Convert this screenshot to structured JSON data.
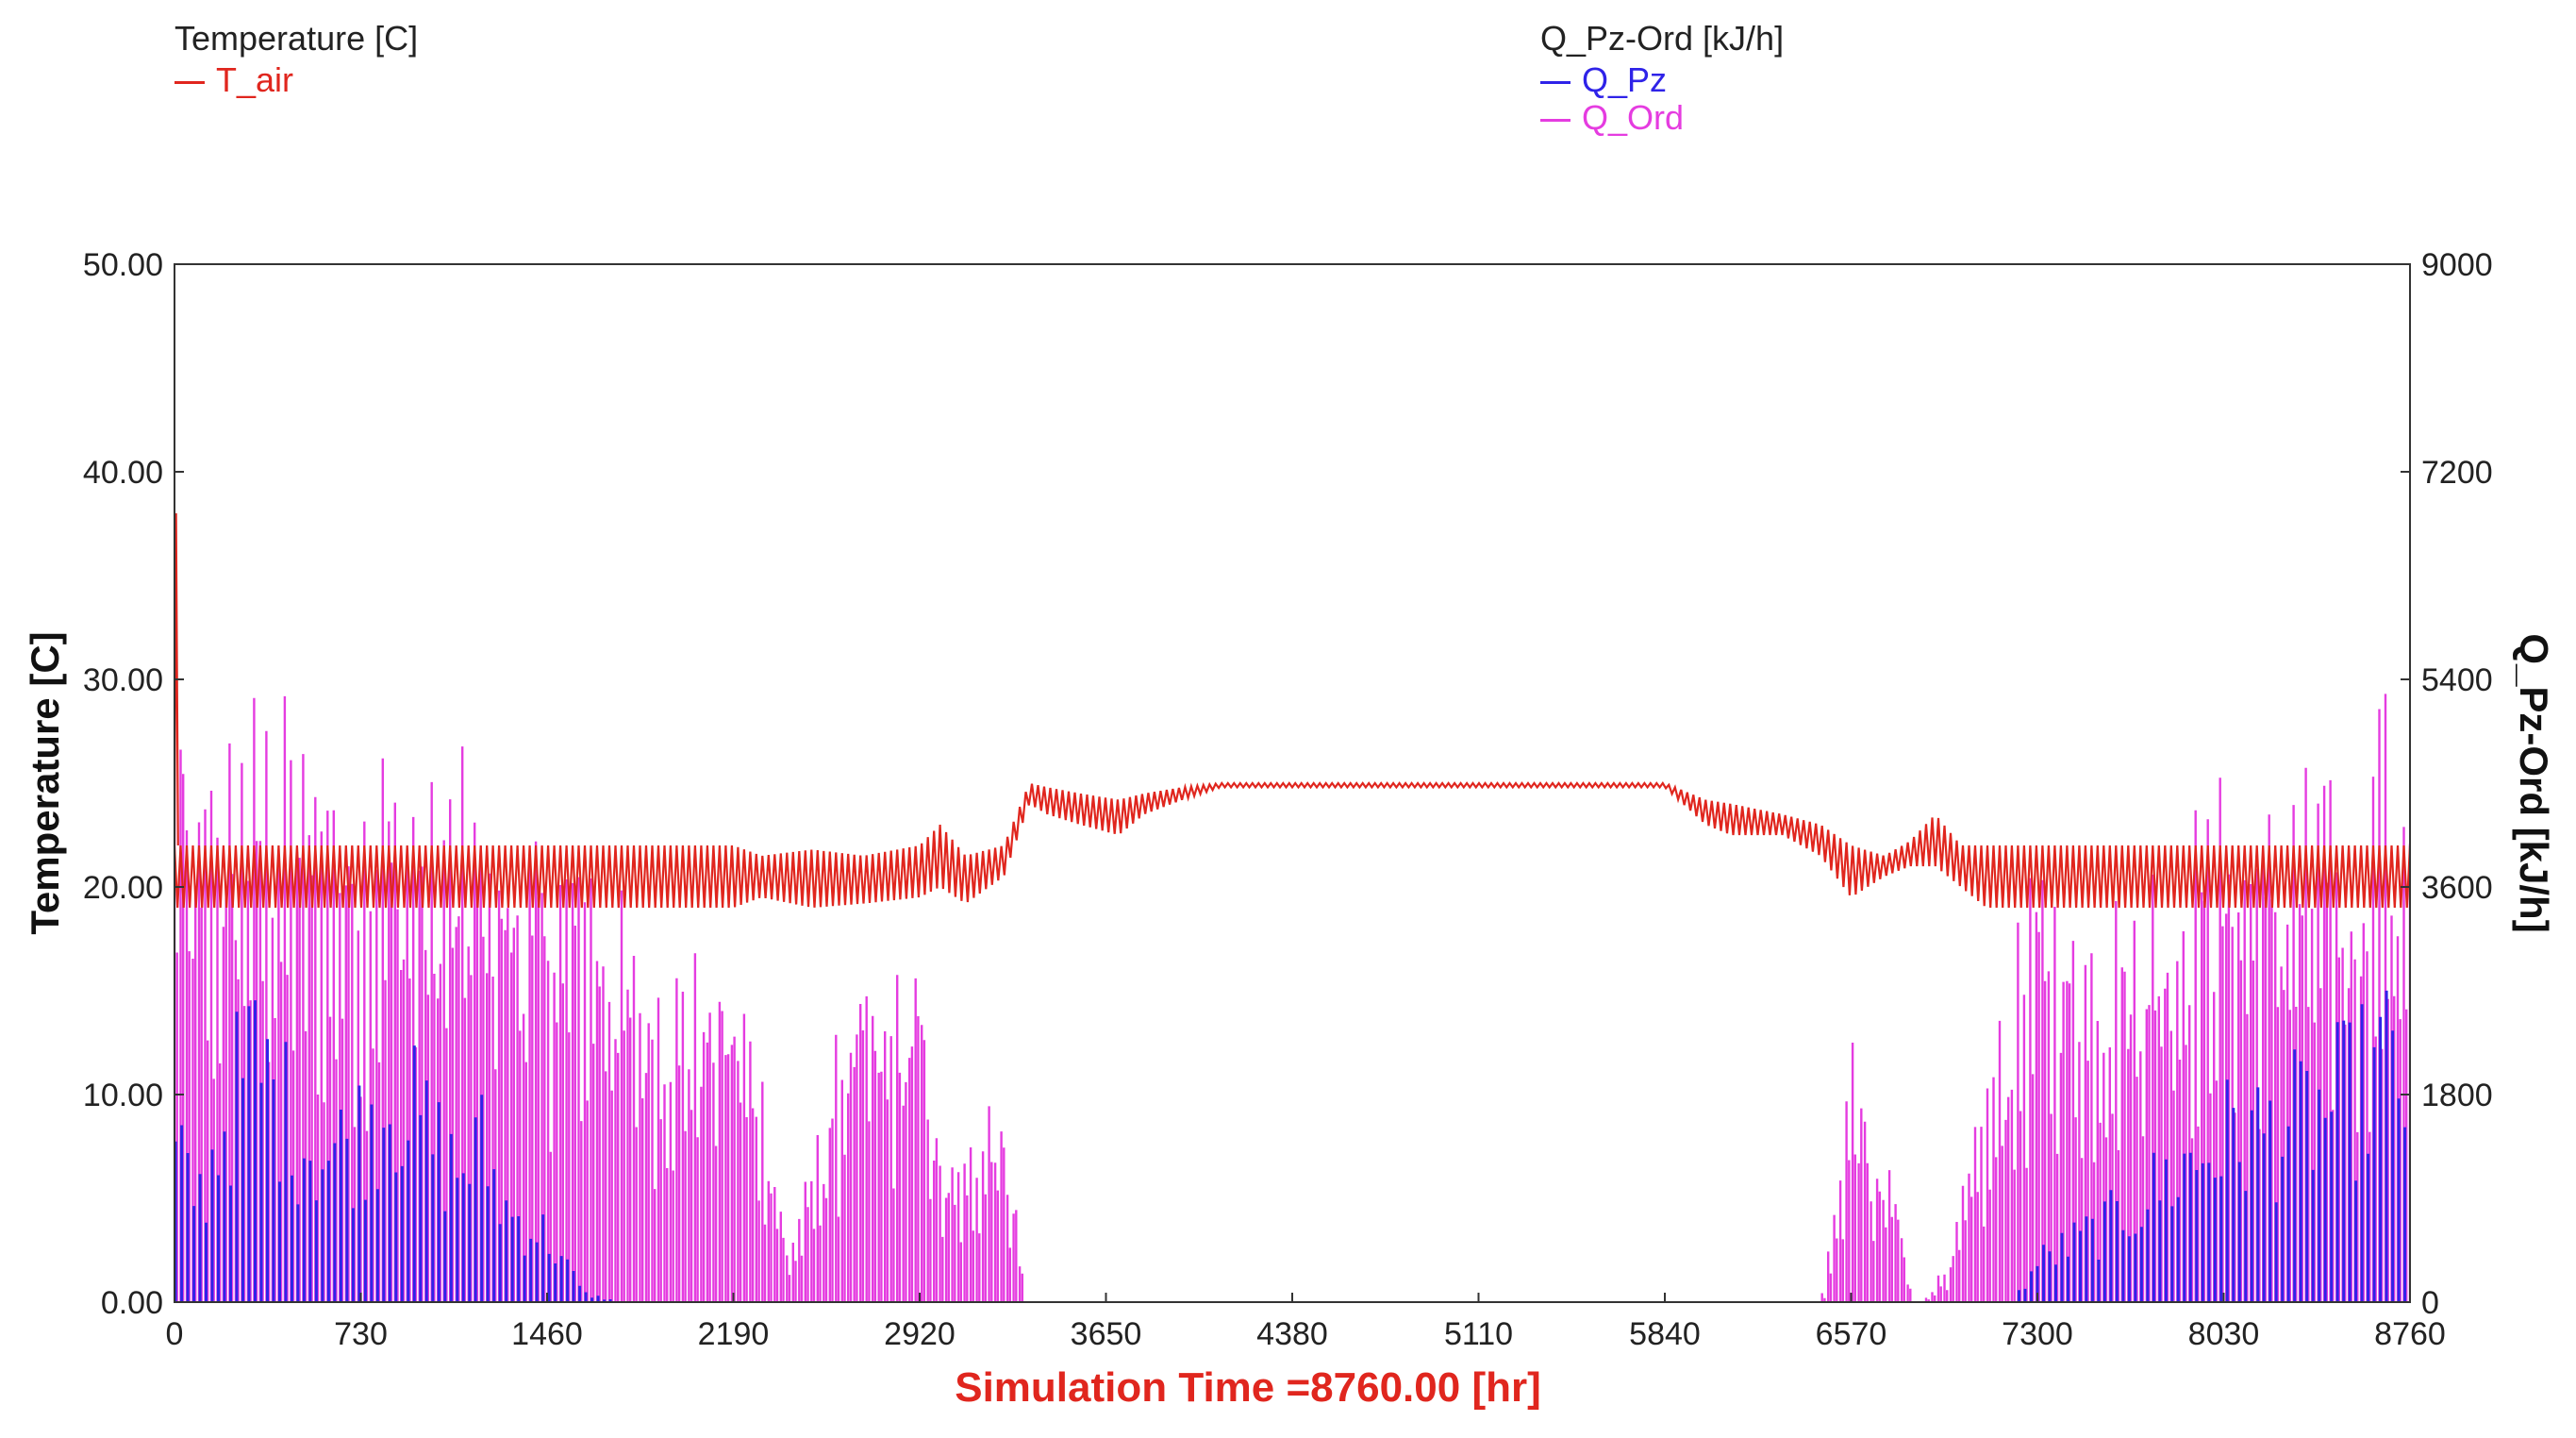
{
  "legend": {
    "left_title": "Temperature [C]",
    "left_items": [
      {
        "label": "T_air",
        "color": "#e0261e"
      }
    ],
    "right_title": "Q_Pz-Ord [kJ/h]",
    "right_items": [
      {
        "label": "Q_Pz",
        "color": "#2f23e8"
      },
      {
        "label": "Q_Ord",
        "color": "#e53ce0"
      }
    ]
  },
  "chart_data": {
    "type": "line",
    "title": "",
    "xlabel": "Simulation Time =8760.00 [hr]",
    "ylabel_left": "Temperature [C]",
    "ylabel_right": "Q_Pz-Ord [kJ/h]",
    "xlim": [
      0,
      8760
    ],
    "ylim_left": [
      0,
      50
    ],
    "ylim_right": [
      0,
      9000
    ],
    "x_ticks": [
      "0",
      "730",
      "1460",
      "2190",
      "2920",
      "3650",
      "4380",
      "5110",
      "5840",
      "6570",
      "7300",
      "8030",
      "8760"
    ],
    "y_left_ticks": [
      "0.00",
      "10.00",
      "20.00",
      "30.00",
      "40.00",
      "50.00"
    ],
    "y_right_ticks": [
      "0",
      "1800",
      "3600",
      "5400",
      "7200",
      "9000"
    ],
    "grid": false,
    "legend_position": "top",
    "series": [
      {
        "name": "T_air",
        "axis": "left",
        "color": "#e0261e",
        "points_x": [
          0,
          30,
          120,
          730,
          1460,
          2190,
          2300,
          2500,
          2700,
          2920,
          3000,
          3100,
          3250,
          3350,
          3420,
          3550,
          3700,
          3800,
          3950,
          4100,
          4380,
          5110,
          5840,
          6000,
          6100,
          6300,
          6450,
          6570,
          6700,
          6800,
          6900,
          7000,
          7100,
          7200,
          7300,
          8030,
          8400,
          8760
        ],
        "upper": [
          22,
          22,
          22,
          22,
          22,
          22,
          21.5,
          21.8,
          21.5,
          22,
          23,
          21.5,
          22,
          25,
          24.8,
          24.5,
          24.2,
          24.5,
          24.8,
          25,
          25,
          25,
          25,
          24.2,
          24,
          23.5,
          23,
          22,
          21.5,
          22.2,
          23.5,
          22,
          22,
          22,
          22,
          22,
          22,
          22
        ],
        "lower": [
          19,
          19,
          19,
          19,
          19,
          19,
          19.5,
          19,
          19.2,
          19.5,
          20,
          19.2,
          20.5,
          24,
          23.5,
          23,
          22.5,
          23.5,
          24.2,
          24.8,
          24.8,
          24.8,
          24.8,
          23,
          22.5,
          22.5,
          21.5,
          19.5,
          20.5,
          21,
          21,
          20,
          19,
          19,
          19,
          19,
          19,
          19
        ]
      },
      {
        "name": "Q_Ord",
        "axis": "right",
        "color": "#e53ce0",
        "envelope_x": [
          0,
          50,
          150,
          300,
          450,
          600,
          730,
          850,
          1000,
          1200,
          1460,
          1650,
          1800,
          2000,
          2190,
          2300,
          2400,
          2500,
          2650,
          2800,
          2920,
          3000,
          3100,
          3200,
          3300,
          3320,
          6450,
          6500,
          6570,
          6650,
          6750,
          6800,
          6850,
          6950,
          7100,
          7300,
          7500,
          7700,
          8030,
          8200,
          8400,
          8550,
          8650,
          8760
        ],
        "envelope_peak": [
          6700,
          4700,
          4900,
          5450,
          5300,
          4950,
          4850,
          5300,
          4700,
          4900,
          4300,
          4300,
          3300,
          3100,
          3250,
          2200,
          500,
          1300,
          3000,
          2850,
          3250,
          1300,
          1300,
          2300,
          1000,
          0,
          0,
          800,
          2600,
          1300,
          1100,
          0,
          0,
          400,
          2000,
          4100,
          3550,
          3900,
          4750,
          4750,
          4700,
          4400,
          5500,
          4500
        ],
        "floor_hint": 3600
      },
      {
        "name": "Q_Pz",
        "axis": "right",
        "color": "#2f23e8",
        "envelope_x": [
          0,
          100,
          200,
          300,
          400,
          500,
          600,
          730,
          850,
          1000,
          1100,
          1200,
          1300,
          1460,
          1600,
          1750,
          6570,
          7200,
          7300,
          7600,
          7800,
          8030,
          8200,
          8400,
          8550,
          8700,
          8760
        ],
        "envelope_peak": [
          1700,
          1300,
          2300,
          3000,
          2500,
          2000,
          1800,
          2100,
          2600,
          2000,
          1600,
          1900,
          1100,
          800,
          100,
          0,
          0,
          0,
          500,
          1000,
          1500,
          2000,
          2100,
          2300,
          2600,
          3000,
          2400
        ]
      }
    ]
  }
}
